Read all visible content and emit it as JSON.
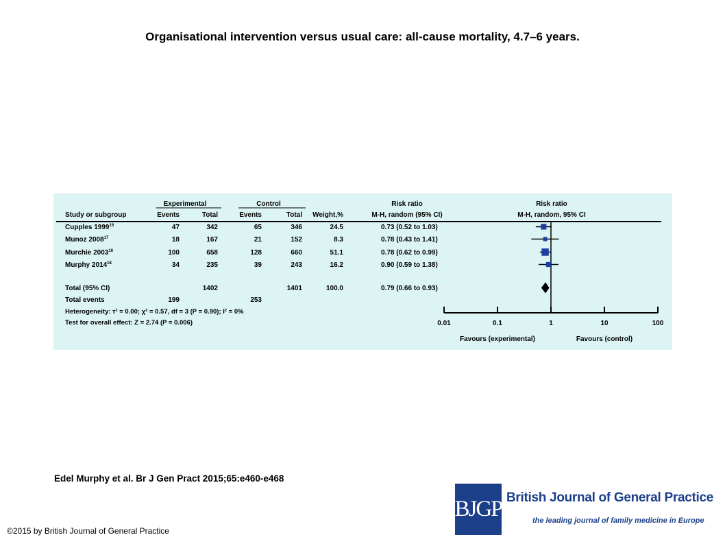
{
  "page": {
    "title": "Organisational intervention versus usual care: all-cause mortality, 4.7–6 years.",
    "citation": "Edel Murphy et al. Br J Gen Pract 2015;65:e460-e468",
    "copyright": "©2015 by British Journal of General Practice"
  },
  "logo": {
    "mark": "BJGP",
    "journal_name": "British Journal of General Practice",
    "tagline": "the leading journal of family medicine in Europe",
    "color": "#1c3f8a"
  },
  "colors": {
    "panel_bg": "#dcf4f3",
    "marker": "#1f3fa0"
  },
  "chart_data": {
    "type": "forest",
    "headers": {
      "experimental_group": "Experimental",
      "control_group": "Control",
      "study": "Study or subgroup",
      "events": "Events",
      "total": "Total",
      "weight": "Weight,%",
      "effect_title": "Risk ratio",
      "effect_sub": "M-H, random (95% CI)",
      "plot_title": "Risk ratio",
      "plot_sub": "M-H, random, 95% CI"
    },
    "studies": [
      {
        "name": "Cupples 1999",
        "ref": "15",
        "exp_events": "47",
        "exp_total": "342",
        "ctl_events": "65",
        "ctl_total": "346",
        "weight": "24.5",
        "ci_text": "0.73 (0.52 to 1.03)",
        "rr": 0.73,
        "lo": 0.52,
        "hi": 1.03
      },
      {
        "name": "Munoz 2008",
        "ref": "17",
        "exp_events": "18",
        "exp_total": "167",
        "ctl_events": "21",
        "ctl_total": "152",
        "weight": "8.3",
        "ci_text": "0.78 (0.43 to 1.41)",
        "rr": 0.78,
        "lo": 0.43,
        "hi": 1.41
      },
      {
        "name": "Murchie 2003",
        "ref": "16",
        "exp_events": "100",
        "exp_total": "658",
        "ctl_events": "128",
        "ctl_total": "660",
        "weight": "51.1",
        "ci_text": "0.78 (0.62 to 0.99)",
        "rr": 0.78,
        "lo": 0.62,
        "hi": 0.99
      },
      {
        "name": "Murphy 2014",
        "ref": "18",
        "exp_events": "34",
        "exp_total": "235",
        "ctl_events": "39",
        "ctl_total": "243",
        "weight": "16.2",
        "ci_text": "0.90 (0.59 to 1.38)",
        "rr": 0.9,
        "lo": 0.59,
        "hi": 1.38
      }
    ],
    "total": {
      "label": "Total (95% CI)",
      "exp_total": "1402",
      "ctl_total": "1401",
      "weight": "100.0",
      "ci_text": "0.79 (0.66 to 0.93)",
      "rr": 0.79,
      "lo": 0.66,
      "hi": 0.93
    },
    "total_events": {
      "label": "Total events",
      "exp_events": "199",
      "ctl_events": "253"
    },
    "heterogeneity_text": "Heterogeneity: τ² = 0.00; χ² = 0.57, df = 3 (P = 0.90); I² = 0%",
    "overall_effect_text": "Test for overall effect: Z = 2.74 (P = 0.006)",
    "x_axis": {
      "scale": "log",
      "ticks": [
        0.01,
        0.1,
        1,
        10,
        100
      ],
      "tick_labels": [
        "0.01",
        "0.1",
        "1",
        "10",
        "100"
      ],
      "favours_left": "Favours (experimental)",
      "favours_right": "Favours (control)"
    }
  }
}
